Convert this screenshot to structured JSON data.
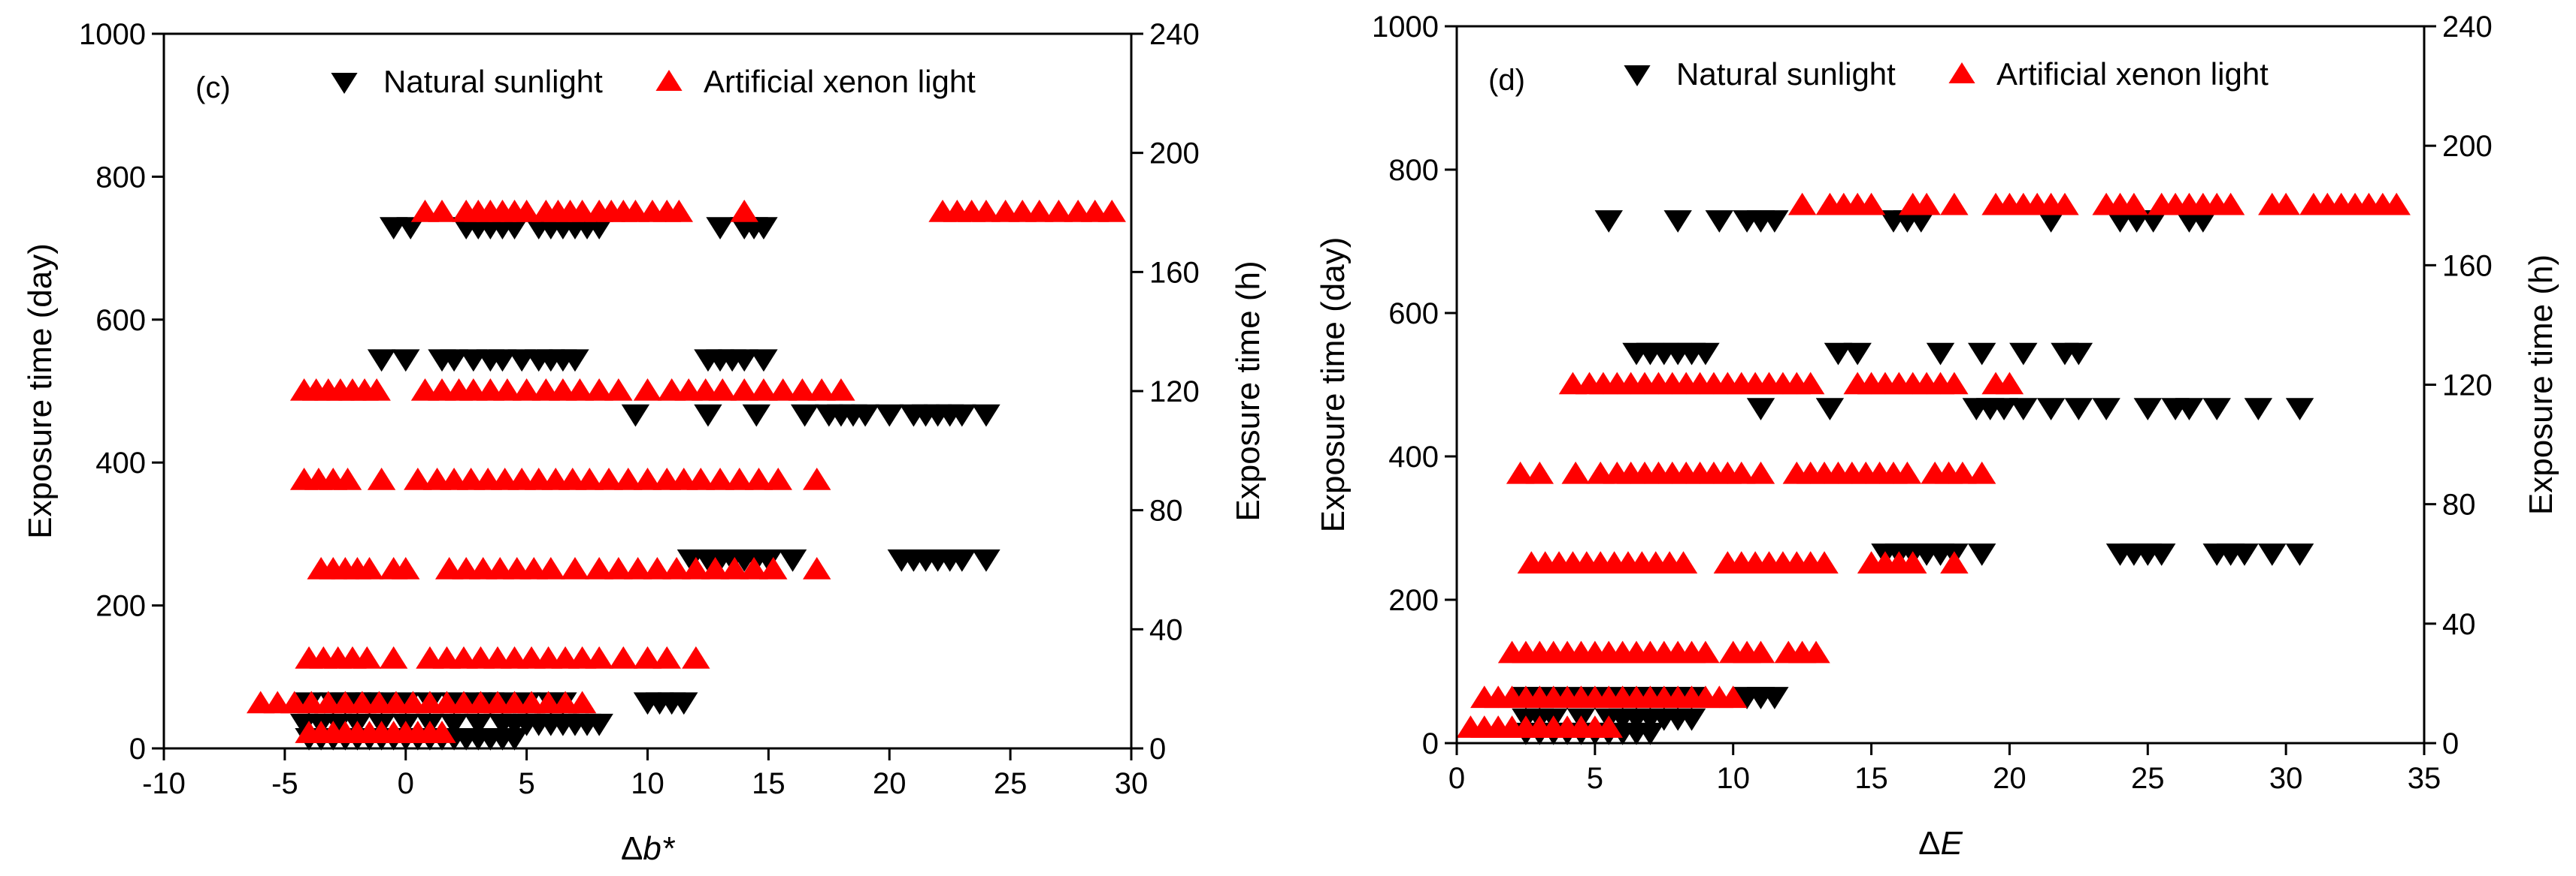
{
  "chart_data": [
    {
      "type": "scatter",
      "panel_label": "(c)",
      "xlabel": "Δb*",
      "xlabel_base": "Δ",
      "xlabel_var": "b*",
      "ylabel_left": "Exposure time (day)",
      "ylabel_right": "Exposure time (h)",
      "xlim": [
        -10,
        30
      ],
      "ylim_left": [
        0,
        1000
      ],
      "ylim_right": [
        0,
        240
      ],
      "xticks": [
        "-10",
        "-5",
        "0",
        "5",
        "10",
        "15",
        "20",
        "25",
        "30"
      ],
      "yticks_left": [
        "0",
        "200",
        "400",
        "600",
        "800",
        "1000"
      ],
      "yticks_right": [
        "0",
        "40",
        "80",
        "120",
        "160",
        "200",
        "240"
      ],
      "legend_position": "top",
      "series": [
        {
          "name": "Natural sunlight",
          "axis": "left",
          "marker": "triangle-down",
          "color": "#000000",
          "points": [
            {
              "y": 730,
              "x": [
                -0.5,
                0.2,
                2.5,
                3.0,
                3.5,
                4.0,
                4.5,
                5.5,
                6.0,
                6.5,
                7.0,
                7.5,
                8.0,
                13.0,
                14.0,
                14.4,
                14.8
              ]
            },
            {
              "y": 545,
              "x": [
                -1.0,
                0.0,
                1.5,
                2.0,
                2.8,
                3.5,
                4.0,
                4.8,
                5.5,
                6.0,
                6.5,
                7.0,
                12.5,
                13.0,
                13.5,
                14.0,
                14.8
              ]
            },
            {
              "y": 468,
              "x": [
                9.5,
                12.5,
                14.5,
                16.5,
                17.5,
                18.0,
                18.5,
                19.0,
                20.0,
                21.0,
                21.5,
                22.0,
                22.5,
                23.0,
                24.0
              ]
            },
            {
              "y": 265,
              "x": [
                11.8,
                12.5,
                13.0,
                13.5,
                14.0,
                14.5,
                15.0,
                16.0,
                20.5,
                21.0,
                21.5,
                22.0,
                22.5,
                23.0,
                24.0
              ]
            },
            {
              "y": 65,
              "x": [
                -4.0,
                -3.0,
                -2.5,
                -2.0,
                -1.5,
                -1.0,
                0.0,
                1.0,
                2.0,
                3.0,
                3.5,
                4.0,
                5.0,
                6.0,
                6.5,
                10.0,
                10.5,
                11.0,
                11.5
              ]
            },
            {
              "y": 35,
              "x": [
                -4.2,
                -3.5,
                -2.8,
                -2.0,
                -1.0,
                0.0,
                1.0,
                2.0,
                3.0,
                4.0,
                4.5,
                5.0,
                5.5,
                6.0,
                6.5,
                7.0,
                7.5,
                8.0
              ]
            },
            {
              "y": 15,
              "x": [
                -4.0,
                -3.5,
                -3.0,
                -2.5,
                -2.0,
                -1.5,
                -1.0,
                -0.5,
                0.0,
                0.5,
                1.0,
                1.5,
                2.0,
                2.5,
                3.0,
                3.5,
                4.0,
                4.5
              ]
            }
          ]
        },
        {
          "name": "Artificial xenon light",
          "axis": "right",
          "marker": "triangle-up",
          "color": "#ff0000",
          "points": [
            {
              "y": 180,
              "x": [
                0.8,
                1.5,
                2.5,
                3.0,
                3.5,
                4.0,
                4.5,
                5.0,
                5.8,
                6.3,
                6.8,
                7.3,
                8.0,
                8.5,
                9.0,
                9.5,
                10.2,
                10.8,
                11.3,
                14.0,
                22.2,
                22.8,
                23.4,
                24.0,
                24.8,
                25.5,
                26.2,
                27.0,
                27.8,
                28.5,
                29.2
              ]
            },
            {
              "y": 120,
              "x": [
                -4.2,
                -3.7,
                -3.2,
                -2.7,
                -2.2,
                -1.7,
                -1.2,
                0.8,
                1.5,
                2.2,
                2.8,
                3.5,
                4.2,
                5.0,
                5.8,
                6.5,
                7.2,
                8.0,
                8.8,
                10.0,
                11.0,
                11.7,
                12.4,
                13.1,
                14.0,
                14.8,
                15.6,
                16.4,
                17.2,
                18.0
              ]
            },
            {
              "y": 90,
              "x": [
                -4.2,
                -3.6,
                -3.0,
                -2.4,
                -1.0,
                0.5,
                1.3,
                2.0,
                2.7,
                3.4,
                4.1,
                4.8,
                5.5,
                6.2,
                6.9,
                7.6,
                8.4,
                9.2,
                10.0,
                10.8,
                11.5,
                12.2,
                13.0,
                13.8,
                14.6,
                15.4,
                17.0
              ]
            },
            {
              "y": 60,
              "x": [
                -3.5,
                -3.0,
                -2.5,
                -2.0,
                -1.5,
                -0.5,
                0.0,
                1.8,
                2.5,
                3.2,
                3.9,
                4.6,
                5.3,
                6.0,
                7.0,
                8.0,
                8.8,
                9.6,
                10.4,
                11.2,
                12.0,
                12.8,
                13.6,
                14.4,
                15.2,
                17.0
              ]
            },
            {
              "y": 30,
              "x": [
                -4.0,
                -3.4,
                -2.8,
                -2.2,
                -1.6,
                -0.5,
                1.0,
                1.7,
                2.4,
                3.1,
                3.8,
                4.5,
                5.2,
                5.9,
                6.6,
                7.3,
                8.0,
                9.0,
                10.0,
                10.8,
                12.0
              ]
            },
            {
              "y": 15,
              "x": [
                -6.0,
                -5.3,
                -4.6,
                -3.9,
                -3.2,
                -2.5,
                -1.8,
                -1.1,
                -0.4,
                0.3,
                1.0,
                1.7,
                2.4,
                3.1,
                3.8,
                4.5,
                5.2,
                5.9,
                6.6,
                7.3
              ]
            },
            {
              "y": 5,
              "x": [
                -4.0,
                -3.5,
                -3.0,
                -2.5,
                -2.0,
                -1.5,
                -1.0,
                -0.5,
                0.0,
                0.5,
                1.0,
                1.5
              ]
            }
          ]
        }
      ]
    },
    {
      "type": "scatter",
      "panel_label": "(d)",
      "xlabel": "ΔE",
      "xlabel_base": "Δ",
      "xlabel_var": "E",
      "ylabel_left": "Exposure time (day)",
      "ylabel_right": "Exposure time (h)",
      "xlim": [
        0,
        35
      ],
      "ylim_left": [
        0,
        1000
      ],
      "ylim_right": [
        0,
        240
      ],
      "xticks": [
        "0",
        "5",
        "10",
        "15",
        "20",
        "25",
        "30",
        "35"
      ],
      "yticks_left": [
        "0",
        "200",
        "400",
        "600",
        "800",
        "1000"
      ],
      "yticks_right": [
        "0",
        "40",
        "80",
        "120",
        "160",
        "200",
        "240"
      ],
      "legend_position": "top",
      "series": [
        {
          "name": "Natural sunlight",
          "axis": "left",
          "marker": "triangle-down",
          "color": "#000000",
          "points": [
            {
              "y": 730,
              "x": [
                5.5,
                8.0,
                9.5,
                10.5,
                11.0,
                11.5,
                15.8,
                16.3,
                16.8,
                21.5,
                24.0,
                24.6,
                25.2,
                26.5,
                27.0
              ]
            },
            {
              "y": 545,
              "x": [
                6.5,
                7.0,
                7.5,
                8.0,
                8.5,
                9.0,
                13.8,
                14.5,
                17.5,
                19.0,
                20.5,
                22.0,
                22.5
              ]
            },
            {
              "y": 468,
              "x": [
                11.0,
                13.5,
                18.8,
                19.3,
                19.8,
                20.5,
                21.5,
                22.5,
                23.5,
                25.0,
                26.0,
                26.5,
                27.5,
                29.0,
                30.5
              ]
            },
            {
              "y": 265,
              "x": [
                15.5,
                16.0,
                16.5,
                17.0,
                17.5,
                18.0,
                19.0,
                24.0,
                24.5,
                25.0,
                25.5,
                27.5,
                28.0,
                28.5,
                29.5,
                30.5
              ]
            },
            {
              "y": 65,
              "x": [
                2.5,
                3.0,
                4.0,
                5.0,
                6.0,
                6.5,
                7.0,
                7.5,
                8.0,
                8.5,
                10.5,
                11.0,
                11.5
              ]
            },
            {
              "y": 35,
              "x": [
                2.5,
                3.0,
                3.5,
                4.5,
                5.5,
                6.0,
                6.5,
                7.0,
                7.5,
                8.0,
                8.5
              ]
            },
            {
              "y": 15,
              "x": [
                2.5,
                3.0,
                3.5,
                4.0,
                4.5,
                5.0,
                5.5,
                6.0,
                6.5,
                7.0
              ]
            }
          ]
        },
        {
          "name": "Artificial xenon light",
          "axis": "right",
          "marker": "triangle-up",
          "color": "#ff0000",
          "points": [
            {
              "y": 180,
              "x": [
                12.5,
                13.5,
                14.0,
                14.5,
                15.0,
                16.5,
                17.0,
                18.0,
                19.5,
                20.0,
                20.5,
                21.0,
                21.5,
                22.0,
                23.5,
                24.0,
                24.5,
                25.5,
                26.0,
                26.5,
                27.0,
                27.5,
                28.0,
                29.5,
                30.0,
                31.0,
                31.5,
                32.0,
                32.5,
                33.0,
                33.5,
                34.0
              ]
            },
            {
              "y": 120,
              "x": [
                4.2,
                4.8,
                5.3,
                5.8,
                6.3,
                6.8,
                7.3,
                7.8,
                8.3,
                8.8,
                9.3,
                9.8,
                10.3,
                10.8,
                11.3,
                11.8,
                12.3,
                12.8,
                14.5,
                15.0,
                15.5,
                16.0,
                16.5,
                17.0,
                17.5,
                18.0,
                19.5,
                20.0
              ]
            },
            {
              "y": 90,
              "x": [
                2.3,
                3.0,
                4.3,
                5.2,
                5.8,
                6.3,
                6.8,
                7.3,
                7.8,
                8.3,
                8.8,
                9.3,
                9.8,
                10.3,
                11.0,
                12.3,
                12.8,
                13.3,
                13.8,
                14.3,
                14.8,
                15.3,
                15.8,
                16.3,
                17.3,
                17.8,
                18.3,
                19.0
              ]
            },
            {
              "y": 60,
              "x": [
                2.7,
                3.2,
                3.7,
                4.2,
                4.7,
                5.2,
                5.7,
                6.2,
                6.7,
                7.2,
                7.7,
                8.2,
                9.8,
                10.3,
                10.8,
                11.3,
                11.8,
                12.3,
                12.8,
                13.3,
                15.0,
                15.5,
                16.0,
                16.5,
                18.0
              ]
            },
            {
              "y": 30,
              "x": [
                2.0,
                2.5,
                3.0,
                3.5,
                4.0,
                4.5,
                5.0,
                5.5,
                6.0,
                6.5,
                7.0,
                7.5,
                8.0,
                8.5,
                9.0,
                10.0,
                10.5,
                11.0,
                12.0,
                12.5,
                13.0
              ]
            },
            {
              "y": 15,
              "x": [
                1.0,
                1.5,
                2.0,
                2.5,
                3.0,
                3.5,
                4.0,
                4.5,
                5.0,
                5.5,
                6.0,
                6.5,
                7.0,
                7.5,
                8.0,
                8.5,
                9.0,
                9.5,
                10.0
              ]
            },
            {
              "y": 5,
              "x": [
                0.5,
                1.0,
                1.5,
                2.0,
                2.5,
                3.0,
                3.5,
                4.0,
                4.5,
                5.0,
                5.5
              ]
            }
          ]
        }
      ]
    }
  ]
}
